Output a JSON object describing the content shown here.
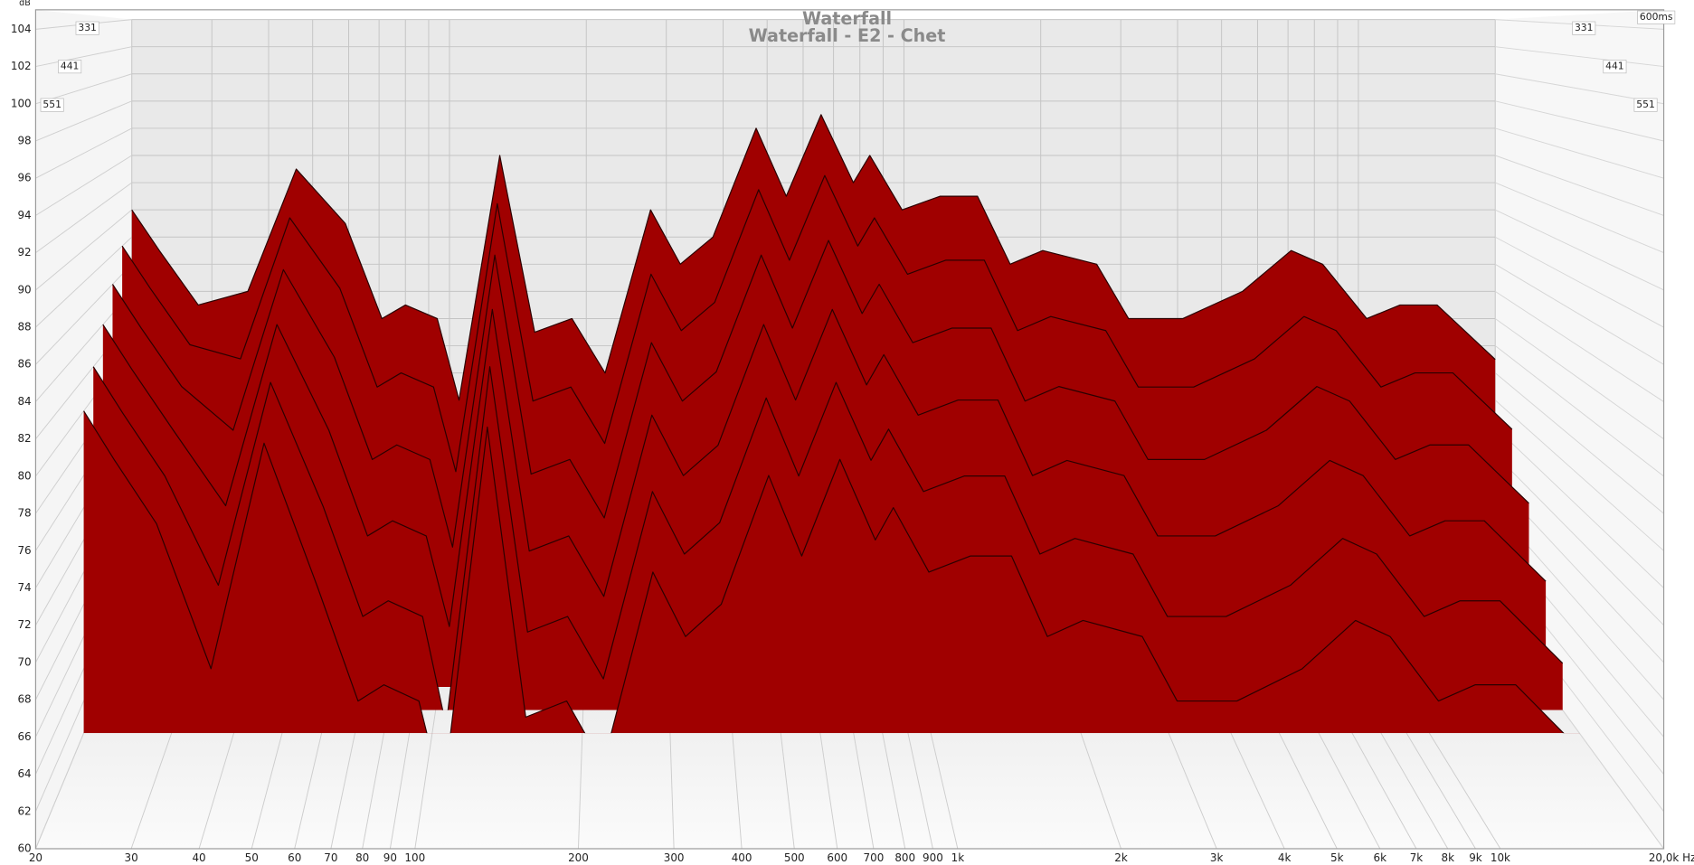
{
  "chart_data": {
    "type": "waterfall",
    "title": "Waterfall",
    "subtitle": "Waterfall - E2 - Chet",
    "ylabel": "dB",
    "xscale": "log",
    "color": "#a00000",
    "grid": true,
    "x": [
      20,
      23,
      28,
      36,
      46,
      59,
      71,
      80,
      94,
      105,
      129,
      154,
      186,
      220,
      277,
      322,
      380,
      473,
      551,
      657,
      774,
      841,
      991,
      1200,
      1452,
      1713,
      2020,
      2655,
      3120,
      4110,
      5560,
      7110,
      8340,
      10430,
      12350,
      14900,
      20000
    ],
    "xlim": [
      20,
      20000
    ],
    "xticks": [
      20,
      30,
      40,
      50,
      60,
      70,
      80,
      90,
      100,
      200,
      300,
      400,
      500,
      600,
      700,
      800,
      900,
      {
        "value": 1000,
        "label": "1k"
      },
      {
        "value": 2000,
        "label": "2k"
      },
      {
        "value": 3000,
        "label": "3k"
      },
      {
        "value": 4000,
        "label": "4k"
      },
      {
        "value": 5000,
        "label": "5k"
      },
      {
        "value": 6000,
        "label": "6k"
      },
      {
        "value": 7000,
        "label": "7k"
      },
      {
        "value": 8000,
        "label": "8k"
      },
      {
        "value": 9000,
        "label": "9k"
      },
      {
        "value": 10000,
        "label": "10k"
      },
      {
        "value": 20000,
        "label": "20,0k Hz"
      }
    ],
    "ylim": [
      60,
      104
    ],
    "yticks": [
      60,
      62,
      64,
      66,
      68,
      70,
      72,
      74,
      76,
      78,
      80,
      82,
      84,
      86,
      88,
      90,
      92,
      94,
      96,
      98,
      100,
      102,
      104
    ],
    "zlim": [
      0,
      600
    ],
    "zticks": [
      331,
      441,
      551,
      {
        "value": 600,
        "label": "600ms"
      }
    ],
    "series": [
      {
        "z": 0,
        "values": [
          90,
          87,
          83,
          84,
          93,
          89,
          82,
          83,
          82,
          76,
          94,
          81,
          82,
          78,
          90,
          86,
          88,
          96,
          91,
          97,
          92,
          94,
          90,
          91,
          91,
          86,
          87,
          86,
          82,
          82,
          84,
          87,
          86,
          82,
          83,
          83,
          79
        ]
      },
      {
        "z": 60,
        "values": [
          88,
          85,
          81,
          80,
          90,
          85,
          78,
          79,
          78,
          72,
          91,
          77,
          78,
          74,
          86,
          82,
          84,
          92,
          87,
          93,
          88,
          90,
          86,
          87,
          87,
          82,
          83,
          82,
          78,
          78,
          80,
          83,
          82,
          78,
          79,
          79,
          75
        ]
      },
      {
        "z": 120,
        "values": [
          86,
          83,
          79,
          76,
          87,
          81,
          74,
          75,
          74,
          68,
          88,
          73,
          74,
          70,
          82,
          78,
          80,
          88,
          83,
          89,
          84,
          86,
          82,
          83,
          83,
          78,
          79,
          78,
          74,
          74,
          76,
          79,
          78,
          74,
          75,
          75,
          71
        ]
      },
      {
        "z": 180,
        "values": [
          84,
          81,
          77,
          72,
          84,
          77,
          70,
          71,
          70,
          64,
          85,
          69,
          70,
          66,
          78,
          74,
          76,
          84,
          79,
          85,
          80,
          82,
          78,
          79,
          79,
          74,
          75,
          74,
          70,
          70,
          72,
          75,
          74,
          70,
          71,
          71,
          67
        ]
      },
      {
        "z": 240,
        "values": [
          82,
          79,
          75,
          68,
          81,
          73,
          66,
          67,
          66,
          59,
          82,
          65,
          66,
          62,
          74,
          70,
          72,
          80,
          75,
          81,
          76,
          78,
          74,
          75,
          75,
          70,
          71,
          70,
          66,
          66,
          68,
          71,
          70,
          66,
          67,
          67,
          63
        ]
      },
      {
        "z": 300,
        "values": [
          80,
          77,
          73,
          64,
          78,
          69,
          62,
          63,
          62,
          56,
          79,
          61,
          62,
          58,
          70,
          66,
          68,
          76,
          71,
          77,
          72,
          74,
          70,
          71,
          71,
          66,
          67,
          66,
          62,
          62,
          64,
          67,
          66,
          62,
          63,
          63,
          59
        ]
      }
    ]
  }
}
